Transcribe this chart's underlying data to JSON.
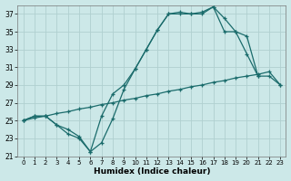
{
  "xlabel": "Humidex (Indice chaleur)",
  "bg_color": "#cce8e8",
  "line_color": "#1a6b6b",
  "grid_color": "#b0d0d0",
  "ylim": [
    21,
    38
  ],
  "xlim": [
    -0.5,
    23.5
  ],
  "yticks": [
    21,
    23,
    25,
    27,
    29,
    31,
    33,
    35,
    37
  ],
  "xticks": [
    0,
    1,
    2,
    3,
    4,
    5,
    6,
    7,
    8,
    9,
    10,
    11,
    12,
    13,
    14,
    15,
    16,
    17,
    18,
    19,
    20,
    21,
    22,
    23
  ],
  "line1_x": [
    0,
    1,
    2,
    3,
    4,
    5,
    6,
    7,
    8,
    9,
    10,
    11,
    12,
    13,
    14,
    15,
    16,
    17,
    18,
    19,
    20,
    21
  ],
  "line1_y": [
    25.0,
    25.5,
    25.5,
    24.5,
    24.0,
    23.2,
    21.5,
    22.5,
    25.2,
    28.5,
    30.8,
    33.0,
    35.2,
    37.0,
    37.0,
    37.0,
    37.2,
    37.8,
    36.5,
    35.0,
    32.5,
    30.0
  ],
  "line2_x": [
    0,
    1,
    2,
    3,
    4,
    5,
    6,
    7,
    8,
    9,
    10,
    11,
    12,
    13,
    14,
    15,
    16,
    17,
    18,
    19,
    20,
    21,
    22,
    23
  ],
  "line2_y": [
    25.0,
    25.5,
    25.5,
    24.5,
    23.5,
    23.0,
    21.5,
    25.5,
    28.0,
    29.0,
    30.8,
    33.0,
    35.2,
    37.0,
    37.2,
    37.0,
    37.0,
    37.8,
    35.0,
    35.0,
    34.5,
    30.0,
    30.0,
    29.0
  ],
  "line3_x": [
    0,
    1,
    2,
    3,
    4,
    5,
    6,
    7,
    8,
    9,
    10,
    11,
    12,
    13,
    14,
    15,
    16,
    17,
    18,
    19,
    20,
    21,
    22,
    23
  ],
  "line3_y": [
    25.0,
    25.3,
    25.5,
    25.8,
    26.0,
    26.3,
    26.5,
    26.8,
    27.0,
    27.3,
    27.5,
    27.8,
    28.0,
    28.3,
    28.5,
    28.8,
    29.0,
    29.3,
    29.5,
    29.8,
    30.0,
    30.2,
    30.5,
    29.0
  ]
}
